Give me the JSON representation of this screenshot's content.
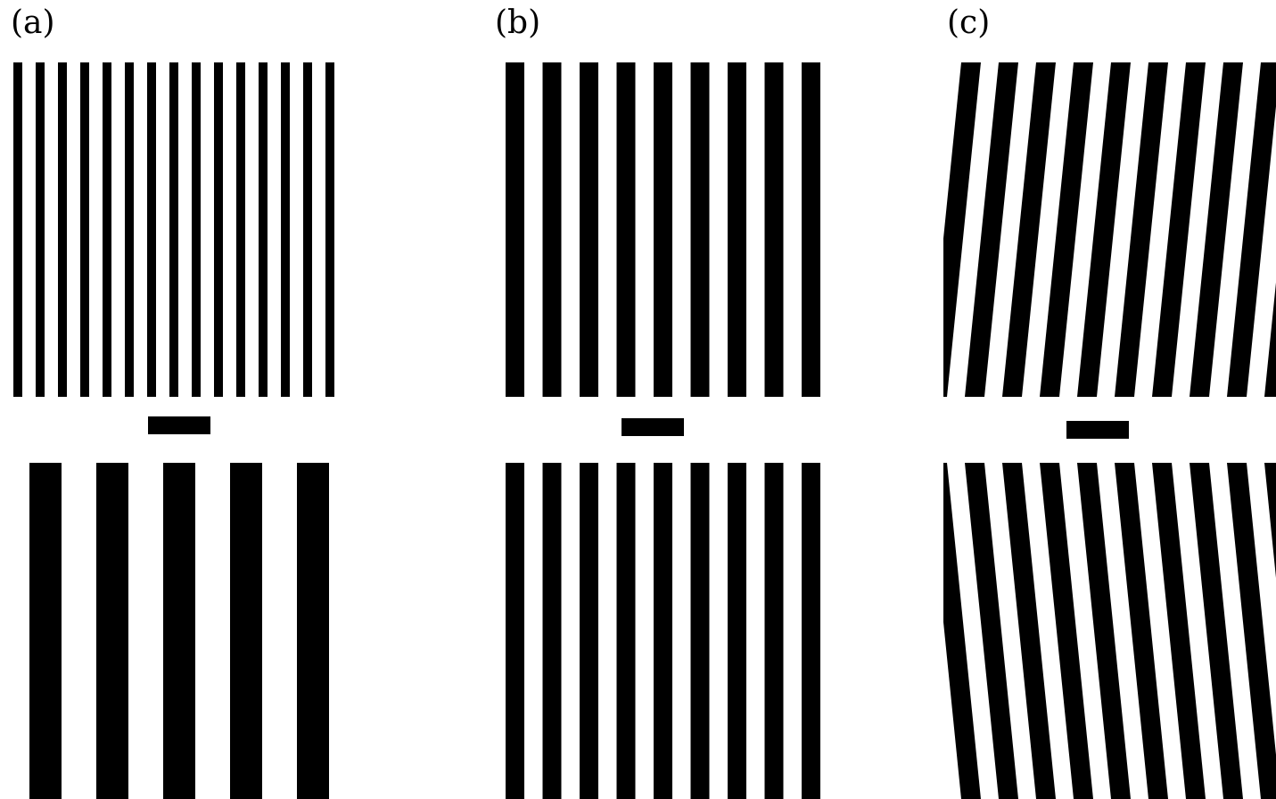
{
  "colors": {
    "stripe": "#000000",
    "background": "#ffffff"
  },
  "panels": [
    {
      "label": "(a)",
      "top_pattern": {
        "kind": "vertical-stripes",
        "stripe_count": 15
      },
      "bottom_pattern": {
        "kind": "vertical-stripes",
        "stripe_count": 5
      }
    },
    {
      "label": "(b)",
      "top_pattern": {
        "kind": "vertical-stripes",
        "stripe_count": 9
      },
      "bottom_pattern": {
        "kind": "vertical-stripes",
        "stripe_count": 9
      }
    },
    {
      "label": "(c)",
      "top_pattern": {
        "kind": "tilted-stripes",
        "tilt": "top-right"
      },
      "bottom_pattern": {
        "kind": "tilted-stripes",
        "tilt": "top-left"
      }
    }
  ]
}
